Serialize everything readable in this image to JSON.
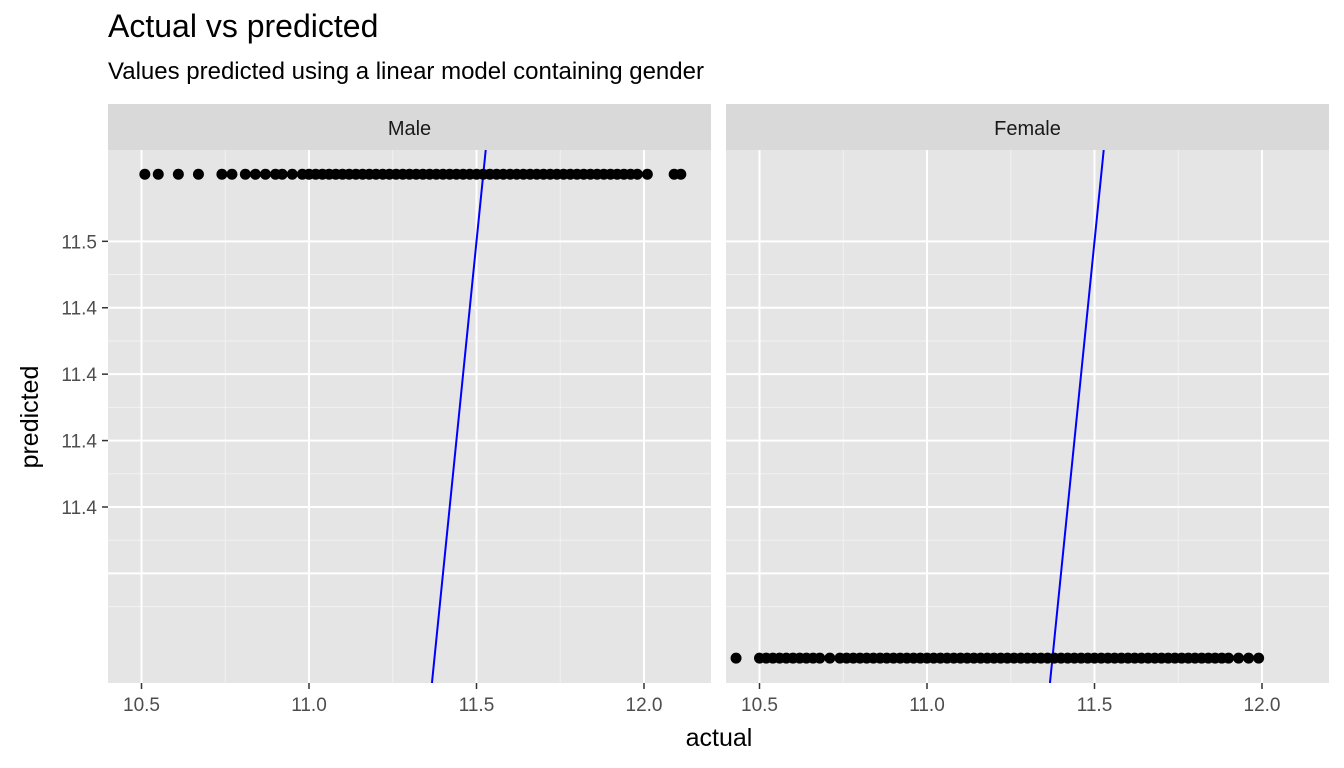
{
  "title": "Actual vs predicted",
  "subtitle": "Values predicted using a linear model containing gender",
  "chart_data": {
    "type": "scatter",
    "xlabel": "actual",
    "ylabel": "predicted",
    "xlim": [
      10.4,
      12.2
    ],
    "ylim": [
      11.367,
      11.5275
    ],
    "x_ticks": [
      10.5,
      11.0,
      11.5,
      12.0
    ],
    "x_tick_labels": [
      "10.5",
      "11.0",
      "11.5",
      "12.0"
    ],
    "y_ticks": [
      11.4,
      11.42,
      11.44,
      11.46,
      11.48,
      11.5
    ],
    "y_tick_labels": [
      "",
      "11.4",
      "11.4",
      "11.4",
      "11.4",
      "11.5"
    ],
    "line_color": "#0000ff",
    "point_color": "#000000",
    "panel_background": "#e5e5e5",
    "strip_background": "#d9d9d9",
    "grid": true,
    "reference_line": {
      "type": "y = x",
      "color": "#0000ff"
    },
    "facets": [
      {
        "name": "Male",
        "predicted": 11.5202,
        "x": [
          10.51,
          10.55,
          10.61,
          10.67,
          10.74,
          10.77,
          10.81,
          10.84,
          10.87,
          10.9,
          10.92,
          10.95,
          10.98,
          11.0,
          11.02,
          11.04,
          11.06,
          11.08,
          11.1,
          11.12,
          11.14,
          11.16,
          11.18,
          11.2,
          11.22,
          11.24,
          11.26,
          11.28,
          11.3,
          11.32,
          11.34,
          11.36,
          11.38,
          11.4,
          11.42,
          11.44,
          11.46,
          11.48,
          11.5,
          11.52,
          11.54,
          11.56,
          11.58,
          11.6,
          11.62,
          11.64,
          11.66,
          11.68,
          11.7,
          11.72,
          11.74,
          11.76,
          11.78,
          11.8,
          11.82,
          11.84,
          11.86,
          11.88,
          11.9,
          11.92,
          11.94,
          11.96,
          11.98,
          12.01,
          12.09,
          12.11
        ]
      },
      {
        "name": "Female",
        "predicted": 11.3745,
        "x": [
          10.43,
          10.5,
          10.52,
          10.54,
          10.56,
          10.58,
          10.6,
          10.62,
          10.64,
          10.66,
          10.68,
          10.71,
          10.74,
          10.76,
          10.78,
          10.8,
          10.82,
          10.84,
          10.86,
          10.88,
          10.9,
          10.92,
          10.94,
          10.96,
          10.98,
          11.0,
          11.02,
          11.04,
          11.06,
          11.08,
          11.1,
          11.12,
          11.14,
          11.16,
          11.18,
          11.2,
          11.22,
          11.24,
          11.26,
          11.28,
          11.3,
          11.32,
          11.34,
          11.36,
          11.38,
          11.4,
          11.42,
          11.44,
          11.46,
          11.48,
          11.5,
          11.52,
          11.54,
          11.56,
          11.58,
          11.6,
          11.62,
          11.64,
          11.66,
          11.68,
          11.7,
          11.72,
          11.74,
          11.76,
          11.78,
          11.8,
          11.82,
          11.84,
          11.86,
          11.88,
          11.9,
          11.93,
          11.96,
          11.99
        ]
      }
    ]
  }
}
